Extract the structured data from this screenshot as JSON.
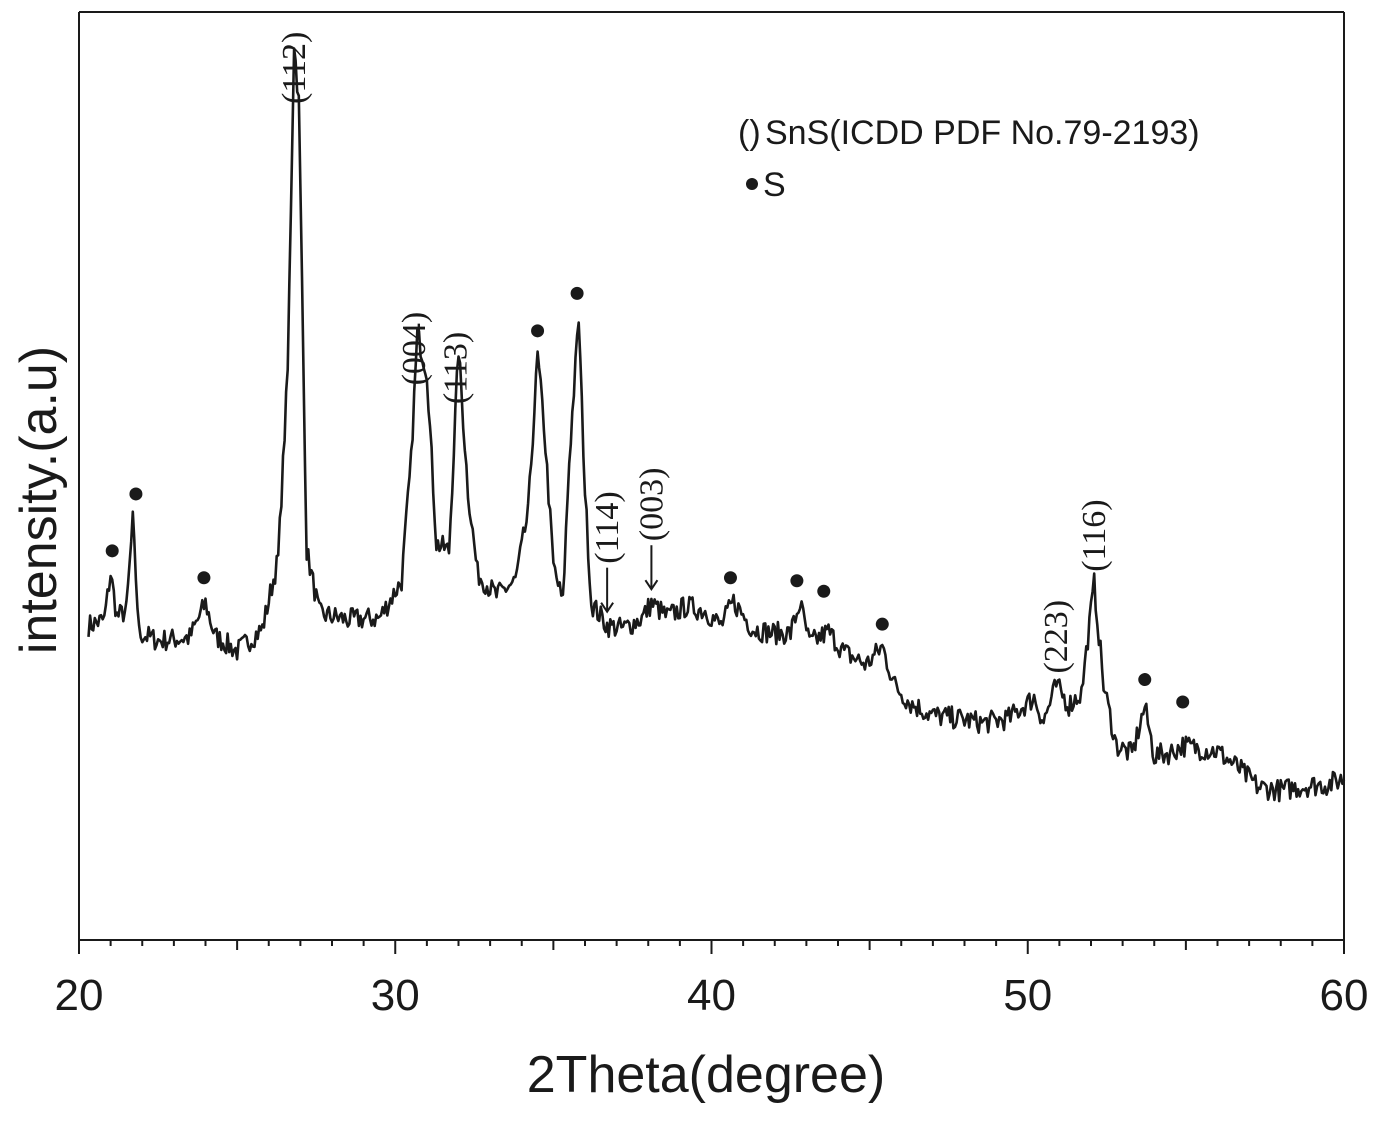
{
  "chart_data": {
    "type": "line",
    "xlabel": "2Theta(degree)",
    "ylabel": "intensity.(a.u)",
    "xlim": [
      20,
      60
    ],
    "x_ticks": [
      "20",
      "30",
      "40",
      "50",
      "60"
    ],
    "y_ticks_visible": false,
    "grid": false,
    "legend": {
      "placement": "top-right",
      "entries": [
        {
          "marker": "()",
          "label": "SnS(ICDD PDF No.79-2193)"
        },
        {
          "marker": "filled-circle",
          "label": "S"
        }
      ]
    },
    "series": [
      {
        "pattern": [
          [
            20.3,
            21.0
          ],
          [
            20.8,
            21.4
          ],
          [
            21.0,
            24.5
          ],
          [
            21.2,
            21.6
          ],
          [
            21.5,
            22.0
          ],
          [
            21.7,
            28.0
          ],
          [
            21.9,
            20.5
          ],
          [
            22.5,
            20.0
          ],
          [
            23.5,
            20.2
          ],
          [
            24.0,
            22.5
          ],
          [
            24.3,
            20.3
          ],
          [
            25.0,
            19.3
          ],
          [
            25.8,
            20.8
          ],
          [
            26.3,
            25.5
          ],
          [
            26.6,
            38.0
          ],
          [
            26.8,
            60.0
          ],
          [
            26.95,
            56.0
          ],
          [
            27.2,
            26.0
          ],
          [
            27.6,
            21.8
          ],
          [
            28.5,
            21.4
          ],
          [
            29.5,
            21.5
          ],
          [
            30.2,
            24.0
          ],
          [
            30.5,
            32.0
          ],
          [
            30.7,
            40.5
          ],
          [
            31.0,
            38.0
          ],
          [
            31.3,
            26.5
          ],
          [
            31.7,
            26.0
          ],
          [
            32.0,
            39.5
          ],
          [
            32.3,
            30.0
          ],
          [
            32.6,
            24.5
          ],
          [
            33.2,
            23.0
          ],
          [
            33.8,
            24.0
          ],
          [
            34.2,
            28.5
          ],
          [
            34.5,
            39.0
          ],
          [
            34.7,
            34.5
          ],
          [
            35.0,
            25.0
          ],
          [
            35.3,
            22.5
          ],
          [
            35.5,
            32.0
          ],
          [
            35.8,
            41.5
          ],
          [
            36.0,
            30.0
          ],
          [
            36.2,
            22.5
          ],
          [
            36.7,
            21.0
          ],
          [
            37.2,
            20.8
          ],
          [
            37.8,
            21.5
          ],
          [
            38.1,
            22.5
          ],
          [
            38.6,
            21.6
          ],
          [
            39.2,
            22.3
          ],
          [
            39.8,
            22.0
          ],
          [
            40.3,
            21.0
          ],
          [
            40.7,
            22.6
          ],
          [
            41.3,
            20.8
          ],
          [
            41.9,
            20.5
          ],
          [
            42.5,
            20.5
          ],
          [
            42.8,
            22.5
          ],
          [
            43.1,
            19.8
          ],
          [
            43.7,
            20.6
          ],
          [
            44.2,
            19.2
          ],
          [
            44.9,
            18.4
          ],
          [
            45.4,
            19.6
          ],
          [
            45.8,
            17.0
          ],
          [
            46.3,
            15.8
          ],
          [
            47.0,
            15.0
          ],
          [
            47.8,
            14.8
          ],
          [
            48.6,
            14.5
          ],
          [
            49.4,
            14.8
          ],
          [
            50.2,
            16.2
          ],
          [
            50.5,
            14.6
          ],
          [
            50.9,
            17.0
          ],
          [
            51.3,
            15.7
          ],
          [
            51.7,
            16.5
          ],
          [
            52.1,
            23.8
          ],
          [
            52.4,
            17.0
          ],
          [
            52.8,
            13.0
          ],
          [
            53.3,
            12.4
          ],
          [
            53.7,
            15.6
          ],
          [
            54.0,
            12.3
          ],
          [
            54.5,
            12.5
          ],
          [
            54.9,
            13.0
          ],
          [
            55.4,
            12.8
          ],
          [
            56.0,
            12.6
          ],
          [
            56.6,
            11.6
          ],
          [
            57.3,
            10.2
          ],
          [
            58.0,
            10.0
          ],
          [
            58.8,
            10.3
          ],
          [
            59.5,
            10.4
          ],
          [
            60.0,
            10.8
          ]
        ]
      }
    ],
    "miller_indices": [
      {
        "x": 26.8,
        "text": "(112)"
      },
      {
        "x": 30.6,
        "text": "(004)"
      },
      {
        "x": 31.9,
        "text": "(113)"
      },
      {
        "x": 36.7,
        "text": "(114)",
        "arrow": true
      },
      {
        "x": 38.1,
        "text": "(003)",
        "arrow": true
      },
      {
        "x": 50.9,
        "text": "(223)"
      },
      {
        "x": 52.1,
        "text": "(116)"
      }
    ],
    "s_markers": [
      {
        "x": 21.05,
        "y": 26.0
      },
      {
        "x": 21.8,
        "y": 29.8
      },
      {
        "x": 23.95,
        "y": 24.2
      },
      {
        "x": 34.5,
        "y": 40.7
      },
      {
        "x": 35.75,
        "y": 43.2
      },
      {
        "x": 40.6,
        "y": 24.2
      },
      {
        "x": 42.7,
        "y": 24.0
      },
      {
        "x": 43.55,
        "y": 23.3
      },
      {
        "x": 45.4,
        "y": 21.1
      },
      {
        "x": 53.7,
        "y": 17.4
      },
      {
        "x": 54.9,
        "y": 15.9
      }
    ]
  }
}
